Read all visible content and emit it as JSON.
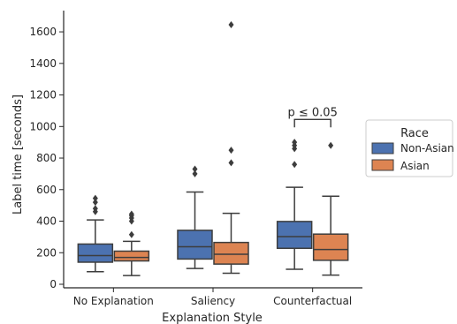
{
  "chart_data": {
    "type": "box",
    "xlabel": "Explanation Style",
    "ylabel": "Label time [seconds]",
    "ylim": [
      -30,
      1730
    ],
    "yticks": [
      0,
      200,
      400,
      600,
      800,
      1000,
      1200,
      1400,
      1600
    ],
    "categories": [
      "No Explanation",
      "Saliency",
      "Counterfactual"
    ],
    "legend": {
      "title": "Race",
      "placement": "center-right"
    },
    "series": [
      {
        "name": "Non-Asian",
        "color": "#4c72b0",
        "boxes": [
          {
            "whisker_low": 80,
            "q1": 140,
            "median": 182,
            "q3": 255,
            "whisker_high": 408,
            "outliers": [
              460,
              480,
              520,
              545
            ]
          },
          {
            "whisker_low": 100,
            "q1": 160,
            "median": 238,
            "q3": 342,
            "whisker_high": 585,
            "outliers": [
              700,
              730
            ]
          },
          {
            "whisker_low": 95,
            "q1": 228,
            "median": 302,
            "q3": 398,
            "whisker_high": 615,
            "outliers": [
              760,
              860,
              880,
              900
            ]
          }
        ]
      },
      {
        "name": "Asian",
        "color": "#dd8452",
        "boxes": [
          {
            "whisker_low": 55,
            "q1": 148,
            "median": 170,
            "q3": 210,
            "whisker_high": 272,
            "outliers": [
              315,
              400,
              420,
              435,
              445
            ]
          },
          {
            "whisker_low": 70,
            "q1": 128,
            "median": 190,
            "q3": 265,
            "whisker_high": 450,
            "outliers": [
              770,
              850,
              1645
            ]
          },
          {
            "whisker_low": 58,
            "q1": 152,
            "median": 220,
            "q3": 318,
            "whisker_high": 558,
            "outliers": [
              880
            ]
          }
        ]
      }
    ],
    "annotations": [
      {
        "text": "p ≤ 0.05",
        "category": "Counterfactual",
        "y": 1045
      }
    ]
  }
}
